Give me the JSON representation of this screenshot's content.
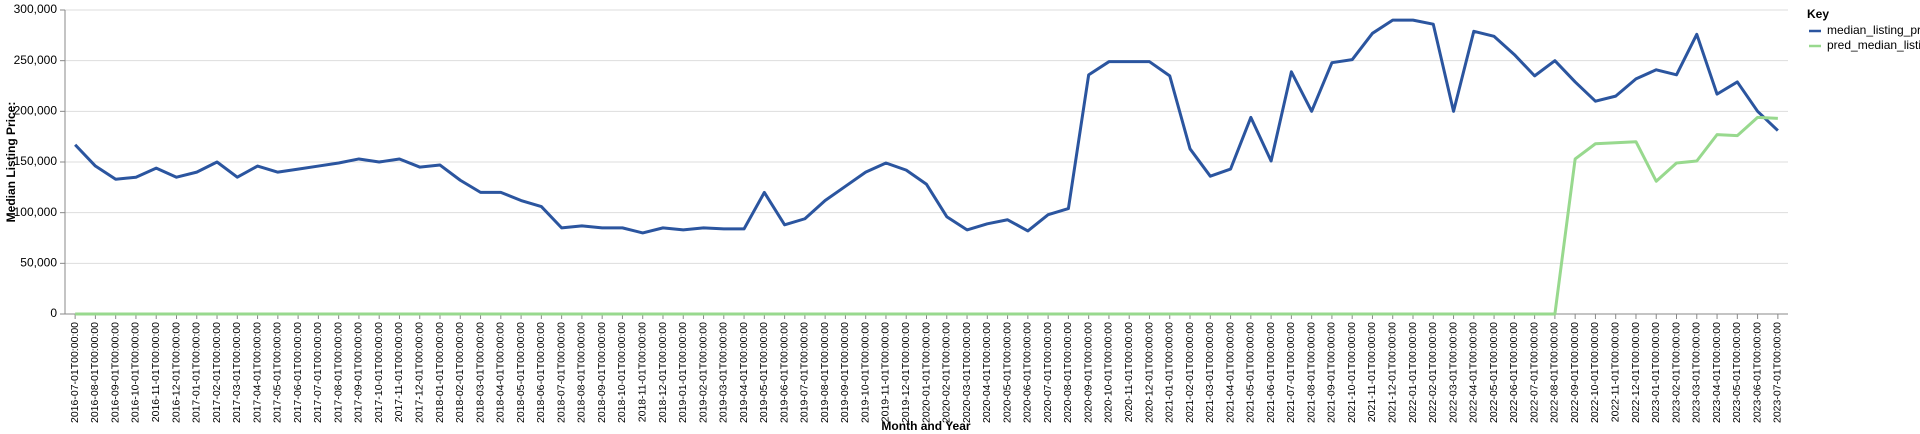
{
  "chart_data": {
    "type": "line",
    "y_axis_label": "Median Listing Price:",
    "x_axis_label": "Month and Year",
    "legend_title": "Key",
    "legend_position": "right",
    "grid": true,
    "categories": [
      "2016-07-01T00:00:00",
      "2016-08-01T00:00:00",
      "2016-09-01T00:00:00",
      "2016-10-01T00:00:00",
      "2016-11-01T00:00:00",
      "2016-12-01T00:00:00",
      "2017-01-01T00:00:00",
      "2017-02-01T00:00:00",
      "2017-03-01T00:00:00",
      "2017-04-01T00:00:00",
      "2017-05-01T00:00:00",
      "2017-06-01T00:00:00",
      "2017-07-01T00:00:00",
      "2017-08-01T00:00:00",
      "2017-09-01T00:00:00",
      "2017-10-01T00:00:00",
      "2017-11-01T00:00:00",
      "2017-12-01T00:00:00",
      "2018-01-01T00:00:00",
      "2018-02-01T00:00:00",
      "2018-03-01T00:00:00",
      "2018-04-01T00:00:00",
      "2018-05-01T00:00:00",
      "2018-06-01T00:00:00",
      "2018-07-01T00:00:00",
      "2018-08-01T00:00:00",
      "2018-09-01T00:00:00",
      "2018-10-01T00:00:00",
      "2018-11-01T00:00:00",
      "2018-12-01T00:00:00",
      "2019-01-01T00:00:00",
      "2019-02-01T00:00:00",
      "2019-03-01T00:00:00",
      "2019-04-01T00:00:00",
      "2019-05-01T00:00:00",
      "2019-06-01T00:00:00",
      "2019-07-01T00:00:00",
      "2019-08-01T00:00:00",
      "2019-09-01T00:00:00",
      "2019-10-01T00:00:00",
      "2019-11-01T00:00:00",
      "2019-12-01T00:00:00",
      "2020-01-01T00:00:00",
      "2020-02-01T00:00:00",
      "2020-03-01T00:00:00",
      "2020-04-01T00:00:00",
      "2020-05-01T00:00:00",
      "2020-06-01T00:00:00",
      "2020-07-01T00:00:00",
      "2020-08-01T00:00:00",
      "2020-09-01T00:00:00",
      "2020-10-01T00:00:00",
      "2020-11-01T00:00:00",
      "2020-12-01T00:00:00",
      "2021-01-01T00:00:00",
      "2021-02-01T00:00:00",
      "2021-03-01T00:00:00",
      "2021-04-01T00:00:00",
      "2021-05-01T00:00:00",
      "2021-06-01T00:00:00",
      "2021-07-01T00:00:00",
      "2021-08-01T00:00:00",
      "2021-09-01T00:00:00",
      "2021-10-01T00:00:00",
      "2021-11-01T00:00:00",
      "2021-12-01T00:00:00",
      "2022-01-01T00:00:00",
      "2022-02-01T00:00:00",
      "2022-03-01T00:00:00",
      "2022-04-01T00:00:00",
      "2022-05-01T00:00:00",
      "2022-06-01T00:00:00",
      "2022-07-01T00:00:00",
      "2022-08-01T00:00:00",
      "2022-09-01T00:00:00",
      "2022-10-01T00:00:00",
      "2022-11-01T00:00:00",
      "2022-12-01T00:00:00",
      "2023-01-01T00:00:00",
      "2023-02-01T00:00:00",
      "2023-03-01T00:00:00",
      "2023-04-01T00:00:00",
      "2023-05-01T00:00:00",
      "2023-06-01T00:00:00",
      "2023-07-01T00:00:00"
    ],
    "series": [
      {
        "name": "median_listing_pri…",
        "color": "#2b559f",
        "values": [
          167000,
          146000,
          133000,
          135000,
          144000,
          135000,
          140000,
          150000,
          135000,
          146000,
          140000,
          143000,
          146000,
          149000,
          153000,
          150000,
          153000,
          145000,
          147000,
          132000,
          120000,
          120000,
          112000,
          106000,
          85000,
          87000,
          85000,
          85000,
          80000,
          85000,
          83000,
          85000,
          84000,
          84000,
          120000,
          88000,
          94000,
          112000,
          126000,
          140000,
          149000,
          142000,
          128000,
          96000,
          83000,
          89000,
          93000,
          82000,
          98000,
          104000,
          236000,
          249000,
          249000,
          249000,
          235000,
          163000,
          136000,
          143000,
          194000,
          151000,
          239000,
          200000,
          248000,
          251000,
          277000,
          290000,
          290000,
          286000,
          200000,
          279000,
          274000,
          256000,
          235000,
          250000,
          229000,
          210000,
          215000,
          232000,
          241000,
          236000,
          276000,
          217000,
          229000,
          200000,
          181000
        ]
      },
      {
        "name": "pred_median_listin…",
        "color": "#98d98e",
        "values": [
          0,
          0,
          0,
          0,
          0,
          0,
          0,
          0,
          0,
          0,
          0,
          0,
          0,
          0,
          0,
          0,
          0,
          0,
          0,
          0,
          0,
          0,
          0,
          0,
          0,
          0,
          0,
          0,
          0,
          0,
          0,
          0,
          0,
          0,
          0,
          0,
          0,
          0,
          0,
          0,
          0,
          0,
          0,
          0,
          0,
          0,
          0,
          0,
          0,
          0,
          0,
          0,
          0,
          0,
          0,
          0,
          0,
          0,
          0,
          0,
          0,
          0,
          0,
          0,
          0,
          0,
          0,
          0,
          0,
          0,
          0,
          0,
          0,
          0,
          153000,
          168000,
          169000,
          170000,
          131000,
          149000,
          151000,
          177000,
          176000,
          194000,
          193000
        ]
      }
    ],
    "ylim": [
      0,
      300000
    ],
    "yticks": [
      {
        "value": 0,
        "label": "0"
      },
      {
        "value": 50000,
        "label": "50,000"
      },
      {
        "value": 100000,
        "label": "100,000"
      },
      {
        "value": 150000,
        "label": "150,000"
      },
      {
        "value": 200000,
        "label": "200,000"
      },
      {
        "value": 250000,
        "label": "250,000"
      },
      {
        "value": 300000,
        "label": "300,000"
      }
    ]
  }
}
